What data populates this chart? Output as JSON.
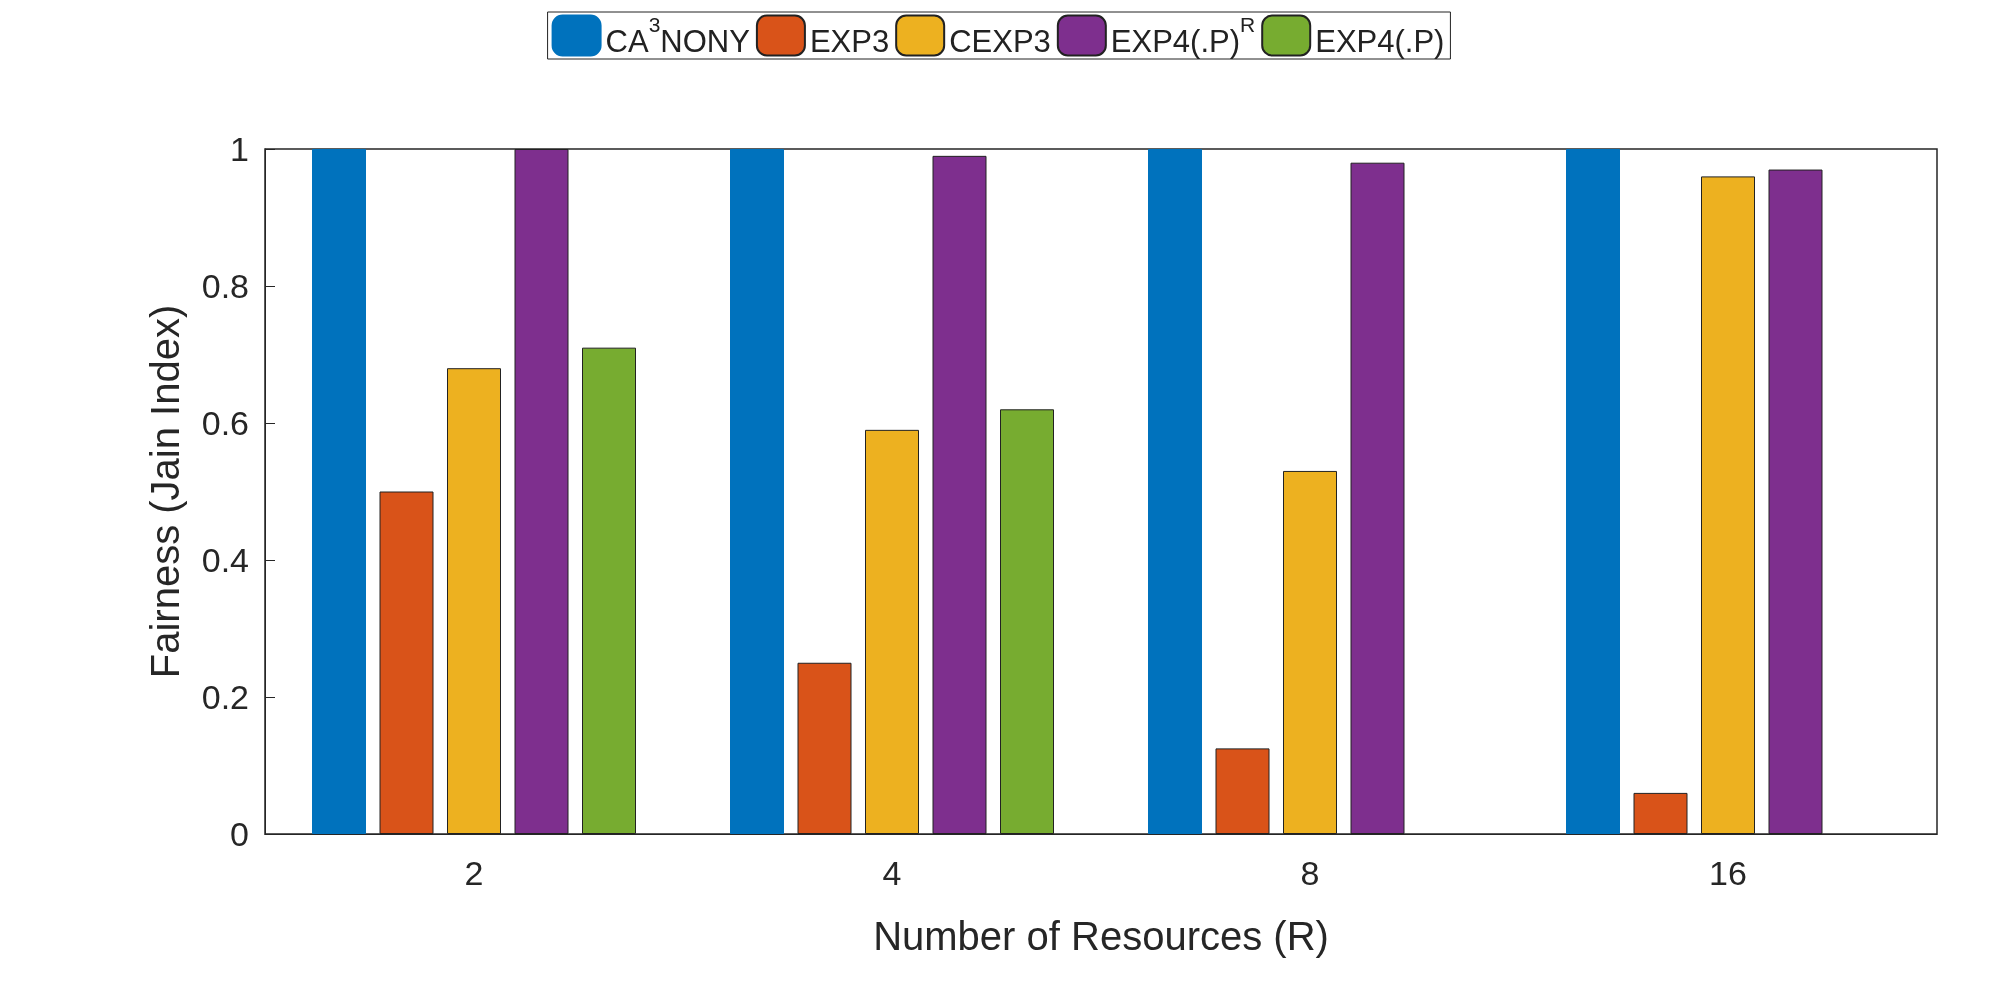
{
  "chart_data": {
    "type": "bar",
    "xlabel": "Number of Resources (R)",
    "ylabel": "Fairness (Jain Index)",
    "categories": [
      "2",
      "4",
      "8",
      "16"
    ],
    "series": [
      {
        "name": "CA$^{3}$NONY",
        "color": "#0072bd",
        "values": [
          1,
          1,
          1,
          1
        ]
      },
      {
        "name": "EXP3",
        "color": "#d95319",
        "values": [
          0.5,
          0.25,
          0.125,
          0.06
        ]
      },
      {
        "name": "CEXP3",
        "color": "#edb120",
        "values": [
          0.68,
          0.59,
          0.53,
          0.96
        ]
      },
      {
        "name": "EXP4(.P)$^{R}$",
        "color": "#7e2f8e",
        "values": [
          1,
          0.99,
          0.98,
          0.97
        ]
      },
      {
        "name": "EXP4(.P)",
        "color": "#77ac30",
        "values": [
          0.71,
          0.62,
          null,
          null
        ]
      }
    ],
    "ylim": [
      0,
      1
    ],
    "yticks": [
      0,
      0.2,
      0.4,
      0.6,
      0.8,
      1
    ],
    "grid": false,
    "legend": "top"
  }
}
